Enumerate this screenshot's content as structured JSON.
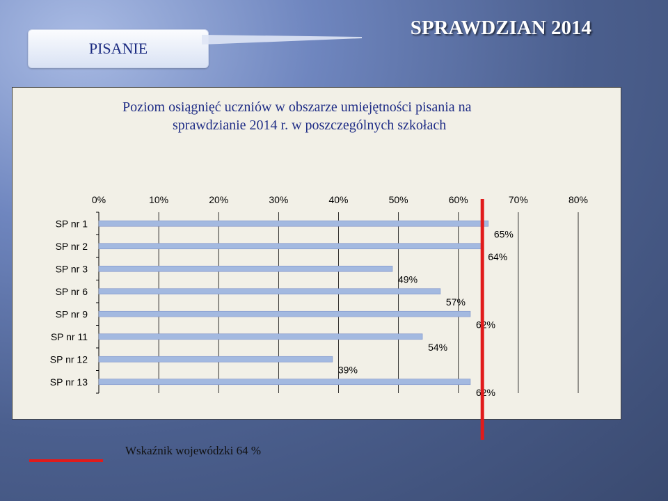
{
  "header": {
    "tab_label": "PISANIE",
    "title": "SPRAWDZIAN 2014"
  },
  "chart_title_lines": [
    "Poziom osiągnięć uczniów w obszarze umiejętności pisania na",
    "sprawdzianie  2014 r. w poszczególnych szkołach"
  ],
  "chart_data": {
    "type": "bar",
    "orientation": "horizontal",
    "title": "Poziom osiągnięć uczniów w obszarze umiejętności pisania na sprawdzianie  2014 r. w poszczególnych szkołach",
    "categories": [
      "SP nr 1",
      "SP nr 2",
      "SP nr 3",
      "SP nr 6",
      "SP nr 9",
      "SP nr 11",
      "SP nr 12",
      "SP nr 13"
    ],
    "values": [
      65,
      64,
      49,
      57,
      62,
      54,
      39,
      62
    ],
    "data_labels": [
      "65%",
      "64%",
      "49%",
      "57%",
      "62%",
      "54%",
      "39%",
      "62%"
    ],
    "x_ticks": [
      "0%",
      "10%",
      "20%",
      "30%",
      "40%",
      "50%",
      "60%",
      "70%",
      "80%"
    ],
    "xlim": [
      0,
      80
    ],
    "x_axis_position": "top",
    "grid": true,
    "reference_line": {
      "value": 64
    },
    "bar_color": "#a3b9e0",
    "bar_edge_color": "#7d93c9",
    "reference_color": "#e11b1b"
  },
  "footer": {
    "legend_label": "Wskaźnik wojewódzki 64 %"
  }
}
